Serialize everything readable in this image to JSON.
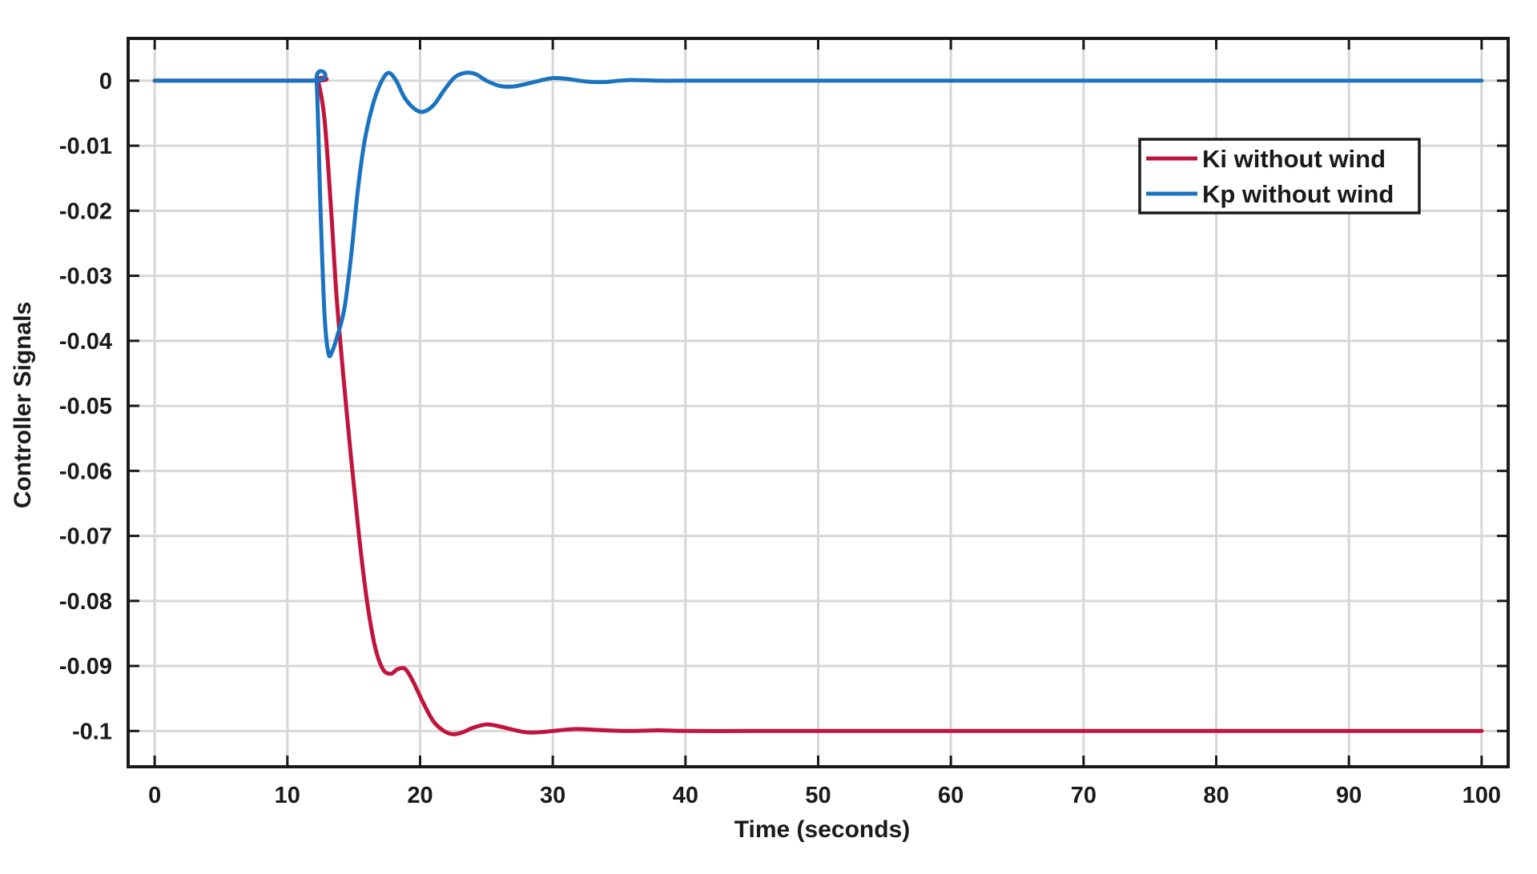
{
  "chart_data": {
    "type": "line",
    "xlabel": "Time (seconds)",
    "ylabel": "Controller Signals",
    "xlim": [
      -2,
      102
    ],
    "ylim": [
      -0.1055,
      0.0065
    ],
    "xticks": [
      0,
      10,
      20,
      30,
      40,
      50,
      60,
      70,
      80,
      90,
      100
    ],
    "xtick_labels": [
      "0",
      "10",
      "20",
      "30",
      "40",
      "50",
      "60",
      "70",
      "80",
      "90",
      "100"
    ],
    "yticks": [
      0,
      -0.01,
      -0.02,
      -0.03,
      -0.04,
      -0.05,
      -0.06,
      -0.07,
      -0.08,
      -0.09,
      -0.1
    ],
    "ytick_labels": [
      "0",
      "-0.01",
      "-0.02",
      "-0.03",
      "-0.04",
      "-0.05",
      "-0.06",
      "-0.07",
      "-0.08",
      "-0.09",
      "-0.1"
    ],
    "grid": true,
    "legend_position": "top-right",
    "series": [
      {
        "name": "Ki without wind",
        "color": "#c0143c",
        "points": [
          [
            0,
            0
          ],
          [
            12,
            0
          ],
          [
            12.3,
            0
          ],
          [
            12.8,
            -0.006
          ],
          [
            13.3,
            -0.02
          ],
          [
            13.7,
            -0.033
          ],
          [
            14.2,
            -0.045
          ],
          [
            14.8,
            -0.058
          ],
          [
            15.4,
            -0.07
          ],
          [
            16,
            -0.08
          ],
          [
            16.6,
            -0.087
          ],
          [
            17.2,
            -0.0905
          ],
          [
            17.8,
            -0.0912
          ],
          [
            18.3,
            -0.0905
          ],
          [
            18.9,
            -0.0905
          ],
          [
            19.5,
            -0.0925
          ],
          [
            20.2,
            -0.0955
          ],
          [
            21,
            -0.0985
          ],
          [
            21.8,
            -0.1
          ],
          [
            22.5,
            -0.1005
          ],
          [
            23.2,
            -0.1002
          ],
          [
            24,
            -0.0995
          ],
          [
            25,
            -0.099
          ],
          [
            26,
            -0.0993
          ],
          [
            27,
            -0.0998
          ],
          [
            28,
            -0.1002
          ],
          [
            29,
            -0.1002
          ],
          [
            30,
            -0.1
          ],
          [
            31,
            -0.0998
          ],
          [
            32,
            -0.0997
          ],
          [
            34,
            -0.0999
          ],
          [
            36,
            -0.1
          ],
          [
            38,
            -0.0999
          ],
          [
            40,
            -0.1
          ],
          [
            45,
            -0.1
          ],
          [
            50,
            -0.1
          ],
          [
            60,
            -0.1
          ],
          [
            70,
            -0.1
          ],
          [
            80,
            -0.1
          ],
          [
            90,
            -0.1
          ],
          [
            100,
            -0.1
          ]
        ]
      },
      {
        "name": "Kp without wind",
        "color": "#1a73c0",
        "points": [
          [
            0,
            0
          ],
          [
            11.9,
            0
          ],
          [
            12.2,
            0
          ],
          [
            12.5,
            -0.02
          ],
          [
            12.8,
            -0.036
          ],
          [
            13.1,
            -0.042
          ],
          [
            13.4,
            -0.0415
          ],
          [
            13.8,
            -0.039
          ],
          [
            14.3,
            -0.035
          ],
          [
            14.8,
            -0.027
          ],
          [
            15.3,
            -0.017
          ],
          [
            15.8,
            -0.0095
          ],
          [
            16.4,
            -0.004
          ],
          [
            17,
            -0.0005
          ],
          [
            17.6,
            0.0012
          ],
          [
            18.2,
            0
          ],
          [
            18.8,
            -0.0025
          ],
          [
            19.5,
            -0.0042
          ],
          [
            20.2,
            -0.0048
          ],
          [
            21,
            -0.0038
          ],
          [
            21.8,
            -0.0015
          ],
          [
            22.6,
            0.0005
          ],
          [
            23.4,
            0.0012
          ],
          [
            24.2,
            0.001
          ],
          [
            25,
            0
          ],
          [
            26,
            -0.0008
          ],
          [
            27,
            -0.0009
          ],
          [
            28,
            -0.0005
          ],
          [
            29,
            0
          ],
          [
            30,
            0.0004
          ],
          [
            31,
            0.0003
          ],
          [
            32,
            0
          ],
          [
            33,
            -0.0002
          ],
          [
            34,
            -0.0002
          ],
          [
            35,
            0
          ],
          [
            36,
            0.0001
          ],
          [
            38,
            0
          ],
          [
            40,
            0
          ],
          [
            50,
            0
          ],
          [
            60,
            0
          ],
          [
            70,
            0
          ],
          [
            80,
            0
          ],
          [
            90,
            0
          ],
          [
            100,
            0
          ]
        ]
      }
    ]
  }
}
